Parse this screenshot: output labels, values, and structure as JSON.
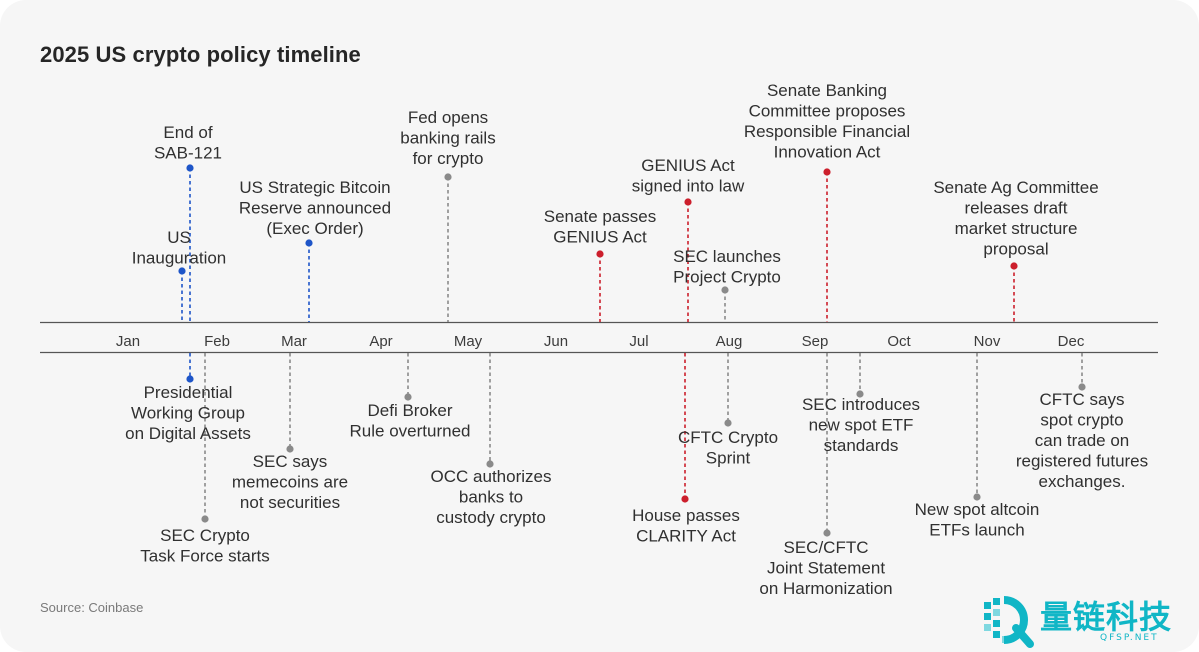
{
  "title": "2025 US crypto policy timeline",
  "source": "Source: Coinbase",
  "colors": {
    "blue": "#1e55c8",
    "red": "#cc1f2c",
    "gray": "#8a8a8a",
    "axis": "#555555",
    "logo": "#10b6c6"
  },
  "months": [
    "Jan",
    "Feb",
    "Mar",
    "Apr",
    "May",
    "Jun",
    "Jul",
    "Aug",
    "Sep",
    "Oct",
    "Nov",
    "Dec"
  ],
  "events_above": [
    {
      "lines": [
        "US",
        "Inauguration"
      ],
      "color": "blue"
    },
    {
      "lines": [
        "End of",
        "SAB-121"
      ],
      "color": "blue"
    },
    {
      "lines": [
        "US Strategic Bitcoin",
        "Reserve announced",
        "(Exec Order)"
      ],
      "color": "blue"
    },
    {
      "lines": [
        "Fed opens",
        "banking rails",
        "for crypto"
      ],
      "color": "gray"
    },
    {
      "lines": [
        "Senate passes",
        "GENIUS Act"
      ],
      "color": "red"
    },
    {
      "lines": [
        "GENIUS Act",
        "signed into law"
      ],
      "color": "red"
    },
    {
      "lines": [
        "SEC launches",
        "Project Crypto"
      ],
      "color": "gray"
    },
    {
      "lines": [
        "Senate Banking",
        "Committee proposes",
        "Responsible Financial",
        "Innovation Act"
      ],
      "color": "red"
    },
    {
      "lines": [
        "Senate Ag Committee",
        "releases draft",
        "market structure",
        "proposal"
      ],
      "color": "red"
    }
  ],
  "events_below": [
    {
      "lines": [
        "Presidential",
        "Working Group",
        "on Digital Assets"
      ],
      "color": "blue"
    },
    {
      "lines": [
        "SEC Crypto",
        "Task Force starts"
      ],
      "color": "gray"
    },
    {
      "lines": [
        "SEC says",
        "memecoins are",
        "not securities"
      ],
      "color": "gray"
    },
    {
      "lines": [
        "Defi Broker",
        "Rule overturned"
      ],
      "color": "gray"
    },
    {
      "lines": [
        "OCC authorizes",
        "banks to",
        "custody crypto"
      ],
      "color": "gray"
    },
    {
      "lines": [
        "House passes",
        "CLARITY Act"
      ],
      "color": "red"
    },
    {
      "lines": [
        "CFTC Crypto",
        "Sprint"
      ],
      "color": "gray"
    },
    {
      "lines": [
        "SEC/CFTC",
        "Joint Statement",
        "on Harmonization"
      ],
      "color": "gray"
    },
    {
      "lines": [
        "SEC introduces",
        "new spot ETF",
        "standards"
      ],
      "color": "gray"
    },
    {
      "lines": [
        "New spot altcoin",
        "ETFs launch"
      ],
      "color": "gray"
    },
    {
      "lines": [
        "CFTC says",
        "spot crypto",
        "can trade on",
        "registered futures",
        "exchanges."
      ],
      "color": "gray"
    }
  ],
  "logo": {
    "cn": "量链科技",
    "en": "QFSP.NET"
  }
}
